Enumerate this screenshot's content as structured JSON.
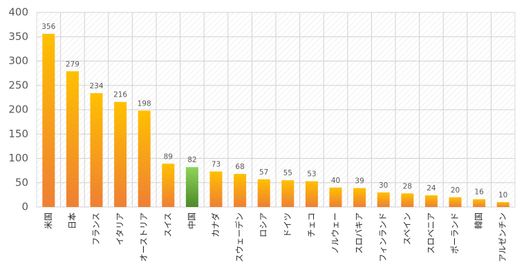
{
  "chart_data": {
    "type": "bar",
    "categories": [
      "米国",
      "日本",
      "フランス",
      "イタリア",
      "オーストリア",
      "スイス",
      "中国",
      "カナダ",
      "スウェーデン",
      "ロシア",
      "ドイツ",
      "チェコ",
      "ノルウェー",
      "スロバキア",
      "フィンランド",
      "スペイン",
      "スロベニア",
      "ポーランド",
      "韓国",
      "アルゼンチン"
    ],
    "values": [
      356,
      279,
      234,
      216,
      198,
      89,
      82,
      73,
      68,
      57,
      55,
      53,
      40,
      39,
      30,
      28,
      24,
      20,
      16,
      10
    ],
    "colors": [
      [
        "#ffc000",
        "#ef7f34"
      ],
      [
        "#ffc000",
        "#ef7f34"
      ],
      [
        "#ffc000",
        "#ef7f34"
      ],
      [
        "#ffc000",
        "#ef7f34"
      ],
      [
        "#ffc000",
        "#ef7f34"
      ],
      [
        "#ffc000",
        "#ef7f34"
      ],
      [
        "#8fd35a",
        "#4d8a2a"
      ],
      [
        "#ffc000",
        "#ef7f34"
      ],
      [
        "#ffc000",
        "#ef7f34"
      ],
      [
        "#ffc000",
        "#ef7f34"
      ],
      [
        "#ffc000",
        "#ef7f34"
      ],
      [
        "#ffc000",
        "#ef7f34"
      ],
      [
        "#ffc000",
        "#ef7f34"
      ],
      [
        "#ffc000",
        "#ef7f34"
      ],
      [
        "#ffc000",
        "#ef7f34"
      ],
      [
        "#ffc000",
        "#ef7f34"
      ],
      [
        "#ffc000",
        "#ef7f34"
      ],
      [
        "#ffc000",
        "#ef7f34"
      ],
      [
        "#ffc000",
        "#ef7f34"
      ],
      [
        "#ffc000",
        "#ef7f34"
      ]
    ],
    "ylim": [
      0,
      400
    ],
    "yticks": [
      0,
      50,
      100,
      150,
      200,
      250,
      300,
      350,
      400
    ],
    "grid": true
  }
}
